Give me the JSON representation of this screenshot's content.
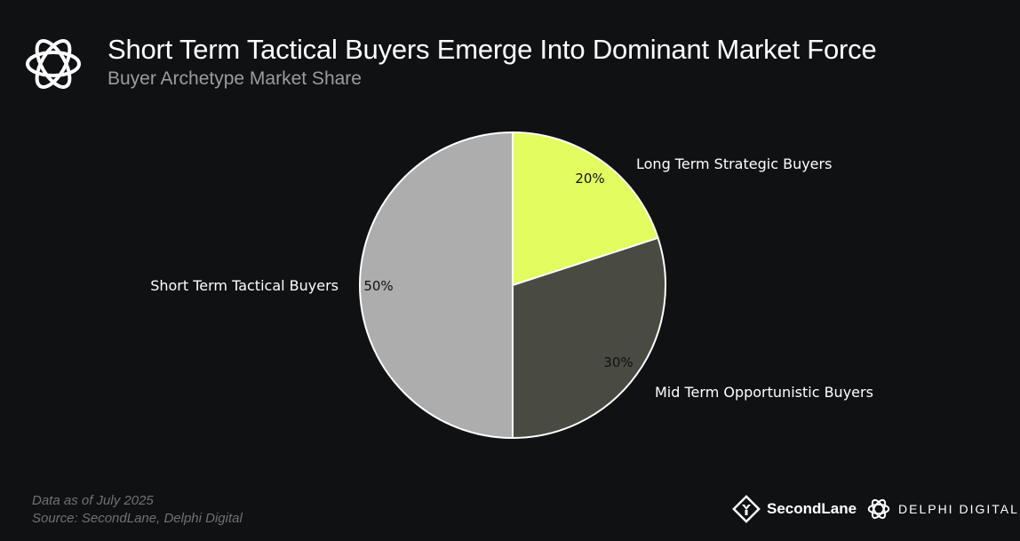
{
  "header": {
    "title": "Short Term Tactical Buyers Emerge Into Dominant Market Force",
    "subtitle": "Buyer Archetype Market Share"
  },
  "footer": {
    "date_note": "Data as of July 2025",
    "source": "Source:  SecondLane,  Delphi  Digital"
  },
  "brands": {
    "secondlane": "SecondLane",
    "delphi": "DELPHI DIGITAL"
  },
  "colors": {
    "background": "#101113",
    "long_term": "#e3fc5f",
    "mid_term": "#494b42",
    "short_term": "#adadad"
  },
  "chart_data": {
    "type": "pie",
    "start": "12 o'clock, clockwise",
    "slices": [
      {
        "label": "Long Term Strategic Buyers",
        "value": 20,
        "value_label": "20%",
        "color": "#e3fc5f"
      },
      {
        "label": "Mid Term Opportunistic Buyers",
        "value": 30,
        "value_label": "30%",
        "color": "#494b42"
      },
      {
        "label": "Short Term Tactical Buyers",
        "value": 50,
        "value_label": "50%",
        "color": "#adadad"
      }
    ]
  }
}
